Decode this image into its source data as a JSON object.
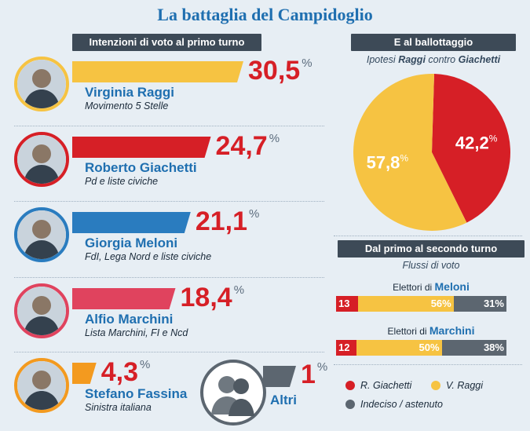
{
  "title": "La battaglia del Campidoglio",
  "first_round": {
    "header": "Intenzioni di voto al primo turno",
    "candidates": [
      {
        "name": "Virginia Raggi",
        "party": "Movimento 5 Stelle",
        "value": "30,5",
        "color": "#f6c342",
        "ring": "#f6c342"
      },
      {
        "name": "Roberto Giachetti",
        "party": "Pd e liste civiche",
        "value": "24,7",
        "color": "#d61f26",
        "ring": "#d61f26"
      },
      {
        "name": "Giorgia Meloni",
        "party": "FdI, Lega Nord e liste civiche",
        "value": "21,1",
        "color": "#2a7cbf",
        "ring": "#2a7cbf"
      },
      {
        "name": "Alfio Marchini",
        "party": "Lista Marchini, FI e Ncd",
        "value": "18,4",
        "color": "#e0435e",
        "ring": "#e0435e"
      },
      {
        "name": "Stefano Fassina",
        "party": "Sinistra italiana",
        "value": "4,3",
        "color": "#f39a1f",
        "ring": "#f39a1f"
      }
    ],
    "others": {
      "name": "Altri",
      "value": "1",
      "color": "#5c6670"
    },
    "pct_sign": "%"
  },
  "ballot": {
    "header": "E al ballottaggio",
    "subtitle_pre": "Ipotesi ",
    "subtitle_a": "Raggi",
    "subtitle_mid": " contro ",
    "subtitle_b": "Giachetti",
    "slices": [
      {
        "label": "42,2",
        "value": 42.2,
        "color": "#d61f26"
      },
      {
        "label": "57,8",
        "value": 57.8,
        "color": "#f6c342"
      }
    ]
  },
  "flows": {
    "header": "Dal primo al secondo turno",
    "subtitle": "Flussi di voto",
    "prefix": "Elettori di ",
    "rows": [
      {
        "group": "Meloni",
        "values": [
          13,
          56,
          31
        ],
        "labels": [
          "13",
          "56%",
          "31%"
        ]
      },
      {
        "group": "Marchini",
        "values": [
          12,
          50,
          38
        ],
        "labels": [
          "12",
          "50%",
          "38%"
        ]
      }
    ],
    "colors": [
      "#d61f26",
      "#f6c342",
      "#5c6670"
    ]
  },
  "legend": [
    {
      "label": "R. Giachetti",
      "color": "#d61f26"
    },
    {
      "label": "V. Raggi",
      "color": "#f6c342"
    },
    {
      "label": "Indeciso / astenuto",
      "color": "#5c6670"
    }
  ],
  "chart_data": [
    {
      "type": "bar",
      "title": "Intenzioni di voto al primo turno",
      "categories": [
        "Virginia Raggi",
        "Roberto Giachetti",
        "Giorgia Meloni",
        "Alfio Marchini",
        "Stefano Fassina",
        "Altri"
      ],
      "values": [
        30.5,
        24.7,
        21.1,
        18.4,
        4.3,
        1
      ]
    },
    {
      "type": "pie",
      "title": "E al ballottaggio",
      "categories": [
        "R. Giachetti",
        "V. Raggi"
      ],
      "values": [
        42.2,
        57.8
      ]
    },
    {
      "type": "bar",
      "title": "Dal primo al secondo turno",
      "categories": [
        "Elettori di Meloni",
        "Elettori di Marchini"
      ],
      "series": [
        {
          "name": "R. Giachetti",
          "values": [
            13,
            12
          ]
        },
        {
          "name": "V. Raggi",
          "values": [
            56,
            50
          ]
        },
        {
          "name": "Indeciso / astenuto",
          "values": [
            31,
            38
          ]
        }
      ]
    }
  ]
}
